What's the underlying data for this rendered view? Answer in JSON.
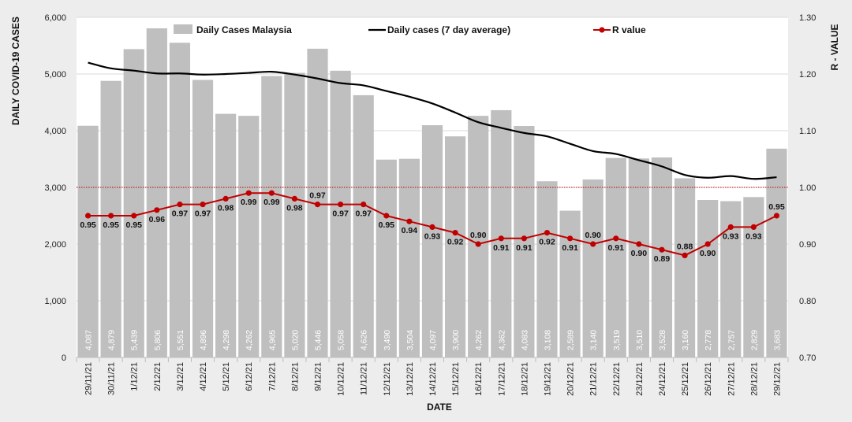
{
  "chart_data": {
    "type": "bar",
    "xlabel": "DATE",
    "ylabel": "DAILY COVID-19 CASES",
    "y2label": "R - VALUE",
    "ylim": [
      0,
      6000
    ],
    "y2lim": [
      0.7,
      1.3
    ],
    "yticks": [
      "0",
      "1,000",
      "2,000",
      "3,000",
      "4,000",
      "5,000",
      "6,000"
    ],
    "y2ticks": [
      "0.70",
      "0.80",
      "0.90",
      "1.00",
      "1.10",
      "1.20",
      "1.30"
    ],
    "reference_line": 1.0,
    "legend_position": "top",
    "categories": [
      "29/11/21",
      "30/11/21",
      "1/12/21",
      "2/12/21",
      "3/12/21",
      "4/12/21",
      "5/12/21",
      "6/12/21",
      "7/12/21",
      "8/12/21",
      "9/12/21",
      "10/12/21",
      "11/12/21",
      "12/12/21",
      "13/12/21",
      "14/12/21",
      "15/12/21",
      "16/12/21",
      "17/12/21",
      "18/12/21",
      "19/12/21",
      "20/12/21",
      "21/12/21",
      "22/12/21",
      "23/12/21",
      "24/12/21",
      "25/12/21",
      "26/12/21",
      "27/12/21",
      "28/12/21",
      "29/12/21"
    ],
    "series": [
      {
        "name": "Daily Cases Malaysia",
        "type": "bar",
        "color": "#bfbfbf",
        "values": [
          4087,
          4879,
          5439,
          5806,
          5551,
          4896,
          4298,
          4262,
          4965,
          5020,
          5446,
          5058,
          4626,
          3490,
          3504,
          4097,
          3900,
          4262,
          4362,
          4083,
          3108,
          2589,
          3140,
          3519,
          3510,
          3528,
          3160,
          2778,
          2757,
          2829,
          3683
        ],
        "labels": [
          "4,087",
          "4,879",
          "5,439",
          "5,806",
          "5,551",
          "4,896",
          "4,298",
          "4,262",
          "4,965",
          "5,020",
          "5,446",
          "5,058",
          "4,626",
          "3,490",
          "3,504",
          "4,097",
          "3,900",
          "4,262",
          "4,362",
          "4,083",
          "3,108",
          "2,589",
          "3,140",
          "3,519",
          "3,510",
          "3,528",
          "3,160",
          "2,778",
          "2,757",
          "2,829",
          "3,683"
        ]
      },
      {
        "name": "Daily cases (7 day average)",
        "type": "line",
        "color": "#000000",
        "values": [
          5200,
          5100,
          5060,
          5010,
          5010,
          4990,
          5000,
          5020,
          5040,
          4990,
          4920,
          4840,
          4800,
          4700,
          4600,
          4480,
          4320,
          4150,
          4050,
          3960,
          3900,
          3770,
          3640,
          3590,
          3480,
          3370,
          3220,
          3170,
          3200,
          3150,
          3180
        ]
      },
      {
        "name": "R value",
        "type": "line",
        "axis": "right",
        "color": "#c00000",
        "values": [
          0.95,
          0.95,
          0.95,
          0.96,
          0.97,
          0.97,
          0.98,
          0.99,
          0.99,
          0.98,
          0.97,
          0.97,
          0.97,
          0.95,
          0.94,
          0.93,
          0.92,
          0.9,
          0.91,
          0.91,
          0.92,
          0.91,
          0.9,
          0.91,
          0.9,
          0.89,
          0.88,
          0.9,
          0.93,
          0.93,
          0.95
        ],
        "labels": [
          "0.95",
          "0.95",
          "0.95",
          "0.96",
          "0.97",
          "0.97",
          "0.98",
          "0.99",
          "0.99",
          "0.98",
          "0.97",
          "0.97",
          "0.97",
          "0.95",
          "0.94",
          "0.93",
          "0.92",
          "0.90",
          "0.91",
          "0.91",
          "0.92",
          "0.91",
          "0.90",
          "0.91",
          "0.90",
          "0.89",
          "0.88",
          "0.90",
          "0.93",
          "0.93",
          "0.95"
        ]
      }
    ]
  }
}
